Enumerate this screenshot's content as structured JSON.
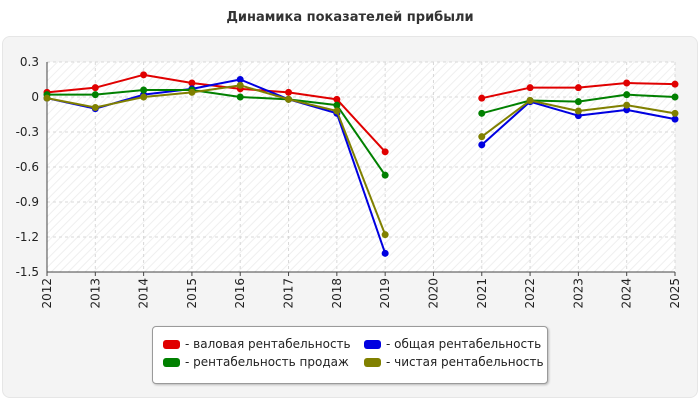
{
  "chart_data": {
    "type": "line",
    "title": "Динамика показателей прибыли",
    "xlabel": "",
    "ylabel": "",
    "categories": [
      "2012",
      "2013",
      "2014",
      "2015",
      "2016",
      "2017",
      "2018",
      "2019",
      "2020",
      "2021",
      "2022",
      "2023",
      "2024",
      "2025"
    ],
    "ylim": [
      -1.5,
      0.3
    ],
    "yticks": [
      "0.3",
      "0",
      "-0.3",
      "-0.6",
      "-0.9",
      "-1.2",
      "-1.5"
    ],
    "ytick_values": [
      0.3,
      0,
      -0.3,
      -0.6,
      -0.9,
      -1.2,
      -1.5
    ],
    "grid": true,
    "legend_position": "bottom",
    "series": [
      {
        "name": "валовая рентабельность",
        "color": "#e00000",
        "values": [
          0.04,
          0.08,
          0.19,
          0.12,
          0.07,
          0.04,
          -0.02,
          -0.47,
          null,
          -0.01,
          0.08,
          0.08,
          0.12,
          0.11
        ]
      },
      {
        "name": "общая рентабельность",
        "color": "#0000e0",
        "values": [
          -0.01,
          -0.1,
          0.02,
          0.07,
          0.15,
          -0.02,
          -0.14,
          -1.34,
          null,
          -0.41,
          -0.04,
          -0.16,
          -0.11,
          -0.19
        ]
      },
      {
        "name": "рентабельность продаж",
        "color": "#008000",
        "values": [
          0.02,
          0.02,
          0.06,
          0.06,
          0.0,
          -0.02,
          -0.07,
          -0.67,
          null,
          -0.14,
          -0.03,
          -0.04,
          0.02,
          0.0
        ]
      },
      {
        "name": "чистая рентабельность",
        "color": "#808000",
        "values": [
          -0.01,
          -0.09,
          0.0,
          0.04,
          0.1,
          -0.02,
          -0.12,
          -1.18,
          null,
          -0.34,
          -0.03,
          -0.12,
          -0.07,
          -0.14
        ]
      }
    ]
  },
  "legend": {
    "items": [
      {
        "label": "- валовая рентабельность",
        "color": "#e00000"
      },
      {
        "label": "- общая рентабельность",
        "color": "#0000e0"
      },
      {
        "label": "- рентабельность продаж",
        "color": "#008000"
      },
      {
        "label": "- чистая рентабельность",
        "color": "#808000"
      }
    ]
  }
}
